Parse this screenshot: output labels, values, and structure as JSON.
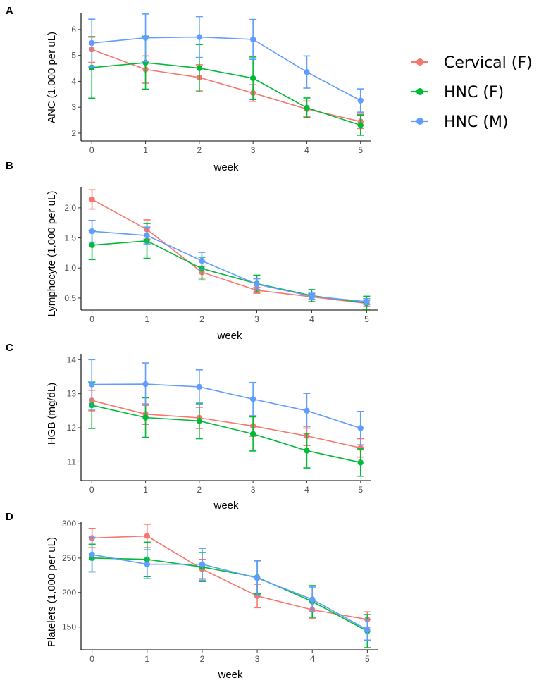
{
  "figure": {
    "legend": {
      "series": [
        {
          "name": "Cervical (F)",
          "color": "#F8766D"
        },
        {
          "name": "HNC (F)",
          "color": "#00BA38"
        },
        {
          "name": "HNC (M)",
          "color": "#619CFF"
        }
      ]
    }
  },
  "chart_data": [
    {
      "panel": "A",
      "type": "line",
      "xlabel": "week",
      "ylabel": "ANC (1,000 per uL)",
      "x": [
        0,
        1,
        2,
        3,
        4,
        5
      ],
      "xlim": [
        -0.2,
        5.2
      ],
      "ylim": [
        1.7,
        6.65
      ],
      "yticks": [
        2,
        3,
        4,
        5,
        6
      ],
      "series": [
        {
          "name": "Cervical (F)",
          "values": [
            5.23,
            4.46,
            4.15,
            3.55,
            2.93,
            2.45
          ],
          "lower": [
            4.73,
            3.93,
            3.66,
            3.23,
            2.63,
            2.18
          ],
          "upper": [
            5.73,
            4.98,
            4.64,
            3.87,
            3.24,
            2.73
          ]
        },
        {
          "name": "HNC (F)",
          "values": [
            4.53,
            4.72,
            4.51,
            4.12,
            2.98,
            2.31
          ],
          "lower": [
            3.35,
            3.7,
            3.6,
            3.3,
            2.6,
            1.92
          ],
          "upper": [
            5.71,
            5.74,
            5.42,
            4.94,
            3.36,
            2.7
          ]
        },
        {
          "name": "HNC (M)",
          "values": [
            5.48,
            5.68,
            5.71,
            5.62,
            4.36,
            3.26
          ],
          "lower": [
            4.56,
            4.76,
            4.92,
            4.85,
            3.74,
            2.81
          ],
          "upper": [
            6.4,
            6.6,
            6.5,
            6.39,
            4.98,
            3.71
          ]
        }
      ]
    },
    {
      "panel": "B",
      "type": "line",
      "xlabel": "week",
      "ylabel": "Lymphocyte (1,000 per uL)",
      "x": [
        0,
        1,
        2,
        3,
        4,
        5
      ],
      "xlim": [
        -0.2,
        5.2
      ],
      "ylim": [
        0.3,
        2.35
      ],
      "yticks": [
        0.5,
        1.0,
        1.5,
        2.0
      ],
      "series": [
        {
          "name": "Cervical (F)",
          "values": [
            2.14,
            1.64,
            0.93,
            0.63,
            0.52,
            0.41
          ],
          "lower": [
            1.98,
            1.48,
            0.83,
            0.58,
            0.47,
            0.36
          ],
          "upper": [
            2.3,
            1.8,
            1.03,
            0.68,
            0.57,
            0.46
          ]
        },
        {
          "name": "HNC (F)",
          "values": [
            1.38,
            1.45,
            0.99,
            0.74,
            0.54,
            0.42
          ],
          "lower": [
            1.14,
            1.16,
            0.8,
            0.6,
            0.44,
            0.31
          ],
          "upper": [
            1.62,
            1.74,
            1.18,
            0.88,
            0.64,
            0.53
          ]
        },
        {
          "name": "HNC (M)",
          "values": [
            1.61,
            1.54,
            1.12,
            0.73,
            0.53,
            0.44
          ],
          "lower": [
            1.43,
            1.4,
            0.98,
            0.64,
            0.48,
            0.39
          ],
          "upper": [
            1.79,
            1.68,
            1.26,
            0.82,
            0.58,
            0.49
          ]
        }
      ]
    },
    {
      "panel": "C",
      "type": "line",
      "xlabel": "week",
      "ylabel": "HGB (mg/dL)",
      "x": [
        0,
        1,
        2,
        3,
        4,
        5
      ],
      "xlim": [
        -0.2,
        5.2
      ],
      "ylim": [
        10.45,
        14.15
      ],
      "yticks": [
        11,
        12,
        13,
        14
      ],
      "series": [
        {
          "name": "Cervical (F)",
          "values": [
            12.8,
            12.4,
            12.29,
            12.05,
            11.76,
            11.41
          ],
          "lower": [
            12.5,
            12.1,
            11.98,
            11.75,
            11.48,
            11.14
          ],
          "upper": [
            13.1,
            12.7,
            12.6,
            12.35,
            12.04,
            11.68
          ]
        },
        {
          "name": "HNC (F)",
          "values": [
            12.66,
            12.3,
            12.2,
            11.82,
            11.33,
            10.98
          ],
          "lower": [
            11.98,
            11.72,
            11.68,
            11.32,
            10.82,
            10.58
          ],
          "upper": [
            13.34,
            12.88,
            12.72,
            12.32,
            11.84,
            11.38
          ]
        },
        {
          "name": "HNC (M)",
          "values": [
            13.27,
            13.28,
            13.2,
            12.84,
            12.5,
            11.99
          ],
          "lower": [
            12.54,
            12.66,
            12.7,
            12.35,
            11.99,
            11.5
          ],
          "upper": [
            14.0,
            13.9,
            13.7,
            13.33,
            13.01,
            12.48
          ]
        }
      ]
    },
    {
      "panel": "D",
      "type": "line",
      "xlabel": "week",
      "ylabel": "Platelets (1,000 per uL)",
      "x": [
        0,
        1,
        2,
        3,
        4,
        5
      ],
      "xlim": [
        -0.2,
        5.2
      ],
      "ylim": [
        117,
        303
      ],
      "yticks": [
        150,
        200,
        250,
        300
      ],
      "series": [
        {
          "name": "Cervical (F)",
          "values": [
            279,
            282,
            234,
            195,
            175,
            161
          ],
          "lower": [
            265,
            265,
            220,
            178,
            162,
            150
          ],
          "upper": [
            293,
            299,
            248,
            212,
            188,
            172
          ]
        },
        {
          "name": "HNC (F)",
          "values": [
            250,
            248,
            237,
            222,
            187,
            144
          ],
          "lower": [
            230,
            223,
            216,
            198,
            164,
            120
          ],
          "upper": [
            270,
            273,
            258,
            246,
            210,
            168
          ]
        },
        {
          "name": "HNC (M)",
          "values": [
            255,
            241,
            241,
            221,
            190,
            146
          ],
          "lower": [
            230,
            220,
            218,
            196,
            172,
            131
          ],
          "upper": [
            280,
            262,
            264,
            246,
            208,
            161
          ]
        }
      ]
    }
  ]
}
